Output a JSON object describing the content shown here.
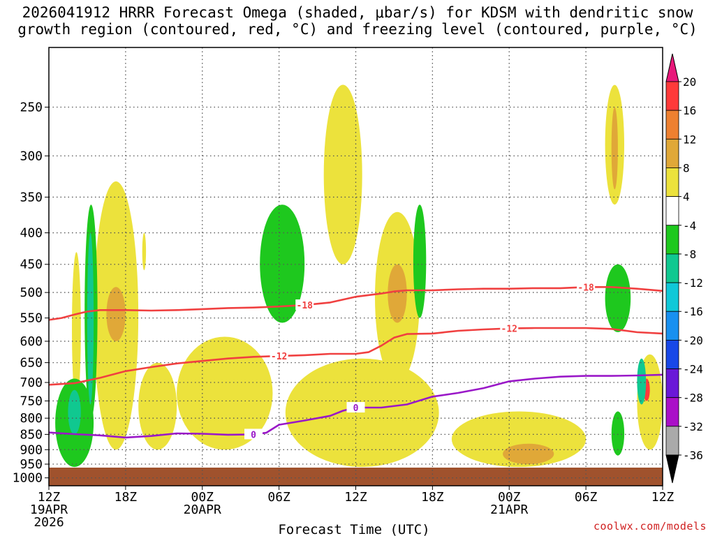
{
  "title_line1": "2026041912 HRRR Forecast Omega (shaded, μbar/s) for KDSM with dendritic snow",
  "title_line2": "growth region (contoured, red, °C) and freezing level (contoured, purple, °C)",
  "credit": "coolwx.com/models",
  "chart_data": {
    "type": "heatmap",
    "xlabel": "Forecast Time (UTC)",
    "ylabel": "",
    "x_ticks": [
      {
        "hour": 0,
        "label": "12Z",
        "date": "19APR",
        "year": "2026"
      },
      {
        "hour": 6,
        "label": "18Z"
      },
      {
        "hour": 12,
        "label": "00Z",
        "date": "20APR"
      },
      {
        "hour": 18,
        "label": "06Z"
      },
      {
        "hour": 24,
        "label": "12Z"
      },
      {
        "hour": 30,
        "label": "18Z"
      },
      {
        "hour": 36,
        "label": "00Z",
        "date": "21APR"
      },
      {
        "hour": 42,
        "label": "06Z"
      },
      {
        "hour": 48,
        "label": "12Z"
      }
    ],
    "xlim": [
      0,
      48
    ],
    "y_ticks": [
      250,
      300,
      350,
      400,
      450,
      500,
      550,
      600,
      650,
      700,
      750,
      800,
      850,
      900,
      950,
      1000
    ],
    "ylim": [
      1030,
      200
    ],
    "colorbar": {
      "labels": [
        "20",
        "16",
        "12",
        "8",
        "4",
        "-4",
        "-8",
        "-12",
        "-16",
        "-20",
        "-24",
        "-28",
        "-32",
        "-36"
      ],
      "colors": [
        "#ff3a3a",
        "#ee8030",
        "#e0a838",
        "#ece23c",
        "#ffffff",
        "#1ec81e",
        "#10c890",
        "#10c8d8",
        "#1890f0",
        "#1848e8",
        "#6a18d8",
        "#aa10c8",
        "#aaaaaa"
      ],
      "top_color": "#e8187a",
      "bottom_color": "#000000"
    },
    "contours": [
      {
        "name": "dgz-minus18",
        "label": "-18",
        "color": "#f04040",
        "points": [
          [
            0,
            554
          ],
          [
            1,
            550
          ],
          [
            2,
            543
          ],
          [
            3,
            537
          ],
          [
            4,
            534
          ],
          [
            6,
            534
          ],
          [
            8,
            535
          ],
          [
            10,
            534
          ],
          [
            12,
            532
          ],
          [
            14,
            530
          ],
          [
            16,
            529
          ],
          [
            18,
            527
          ],
          [
            20,
            524
          ],
          [
            22,
            519
          ],
          [
            24,
            508
          ],
          [
            26,
            502
          ],
          [
            27,
            498
          ],
          [
            28,
            496
          ],
          [
            30,
            496
          ],
          [
            32,
            494
          ],
          [
            34,
            493
          ],
          [
            36,
            493
          ],
          [
            38,
            492
          ],
          [
            40,
            492
          ],
          [
            42,
            490
          ],
          [
            44,
            490
          ],
          [
            46,
            493
          ],
          [
            48,
            497
          ]
        ]
      },
      {
        "name": "dgz-minus12",
        "label": "-12",
        "color": "#f04040",
        "points": [
          [
            0,
            706
          ],
          [
            2,
            702
          ],
          [
            4,
            688
          ],
          [
            6,
            671
          ],
          [
            8,
            661
          ],
          [
            10,
            652
          ],
          [
            12,
            646
          ],
          [
            14,
            640
          ],
          [
            16,
            636
          ],
          [
            18,
            634
          ],
          [
            20,
            632
          ],
          [
            22,
            629
          ],
          [
            24,
            629
          ],
          [
            25,
            625
          ],
          [
            26,
            610
          ],
          [
            27,
            592
          ],
          [
            28,
            584
          ],
          [
            30,
            583
          ],
          [
            32,
            577
          ],
          [
            34,
            574
          ],
          [
            36,
            572
          ],
          [
            38,
            571
          ],
          [
            40,
            571
          ],
          [
            42,
            571
          ],
          [
            44,
            573
          ],
          [
            46,
            580
          ],
          [
            48,
            583
          ]
        ]
      },
      {
        "name": "freezing-level",
        "label": "0",
        "color": "#9a18c8",
        "points": [
          [
            0,
            844
          ],
          [
            2,
            849
          ],
          [
            4,
            853
          ],
          [
            6,
            860
          ],
          [
            8,
            855
          ],
          [
            10,
            847
          ],
          [
            12,
            848
          ],
          [
            14,
            851
          ],
          [
            16,
            850
          ],
          [
            17,
            845
          ],
          [
            18,
            820
          ],
          [
            20,
            807
          ],
          [
            22,
            793
          ],
          [
            23,
            778
          ],
          [
            24,
            769
          ],
          [
            26,
            769
          ],
          [
            28,
            760
          ],
          [
            30,
            738
          ],
          [
            32,
            728
          ],
          [
            34,
            715
          ],
          [
            36,
            697
          ],
          [
            38,
            690
          ],
          [
            40,
            685
          ],
          [
            42,
            683
          ],
          [
            44,
            683
          ],
          [
            46,
            682
          ],
          [
            48,
            680
          ]
        ]
      }
    ],
    "shading_regions": [
      {
        "value": 6,
        "hours": [
          1.8,
          2.5
        ],
        "levels": [
          430,
          760
        ]
      },
      {
        "value": 6,
        "hours": [
          3.5,
          7.0
        ],
        "levels": [
          330,
          900
        ]
      },
      {
        "value": 10,
        "hours": [
          4.5,
          6.0
        ],
        "levels": [
          490,
          600
        ]
      },
      {
        "value": 6,
        "hours": [
          7.0,
          10.0
        ],
        "levels": [
          650,
          900
        ]
      },
      {
        "value": 6,
        "hours": [
          10.0,
          17.5
        ],
        "levels": [
          590,
          900
        ]
      },
      {
        "value": 6,
        "hours": [
          7.3,
          7.6
        ],
        "levels": [
          400,
          460
        ]
      },
      {
        "value": 6,
        "hours": [
          21.5,
          24.5
        ],
        "levels": [
          230,
          450
        ]
      },
      {
        "value": 6,
        "hours": [
          18.5,
          30.5
        ],
        "levels": [
          640,
          960
        ]
      },
      {
        "value": 6,
        "hours": [
          25.5,
          29.0
        ],
        "levels": [
          370,
          700
        ]
      },
      {
        "value": 10,
        "hours": [
          26.5,
          28.0
        ],
        "levels": [
          450,
          560
        ]
      },
      {
        "value": 6,
        "hours": [
          31.5,
          42.0
        ],
        "levels": [
          780,
          960
        ]
      },
      {
        "value": 10,
        "hours": [
          35.5,
          39.5
        ],
        "levels": [
          880,
          950
        ]
      },
      {
        "value": 6,
        "hours": [
          43.5,
          45.0
        ],
        "levels": [
          230,
          360
        ]
      },
      {
        "value": 10,
        "hours": [
          44.0,
          44.5
        ],
        "levels": [
          250,
          340
        ]
      },
      {
        "value": 6,
        "hours": [
          46.0,
          48.0
        ],
        "levels": [
          630,
          900
        ]
      },
      {
        "value": 18,
        "hours": [
          46.5,
          47.0
        ],
        "levels": [
          690,
          750
        ]
      },
      {
        "value": -6,
        "hours": [
          0.5,
          3.5
        ],
        "levels": [
          690,
          960
        ]
      },
      {
        "value": -10,
        "hours": [
          1.5,
          2.5
        ],
        "levels": [
          720,
          850
        ]
      },
      {
        "value": -6,
        "hours": [
          2.8,
          3.8
        ],
        "levels": [
          360,
          800
        ]
      },
      {
        "value": -10,
        "hours": [
          3.0,
          3.5
        ],
        "levels": [
          400,
          760
        ]
      },
      {
        "value": -6,
        "hours": [
          16.5,
          20.0
        ],
        "levels": [
          360,
          560
        ]
      },
      {
        "value": -6,
        "hours": [
          28.5,
          29.5
        ],
        "levels": [
          360,
          550
        ]
      },
      {
        "value": -6,
        "hours": [
          43.5,
          45.5
        ],
        "levels": [
          450,
          580
        ]
      },
      {
        "value": -6,
        "hours": [
          44.0,
          45.0
        ],
        "levels": [
          780,
          920
        ]
      },
      {
        "value": -10,
        "hours": [
          46.0,
          46.7
        ],
        "levels": [
          640,
          760
        ]
      }
    ]
  }
}
